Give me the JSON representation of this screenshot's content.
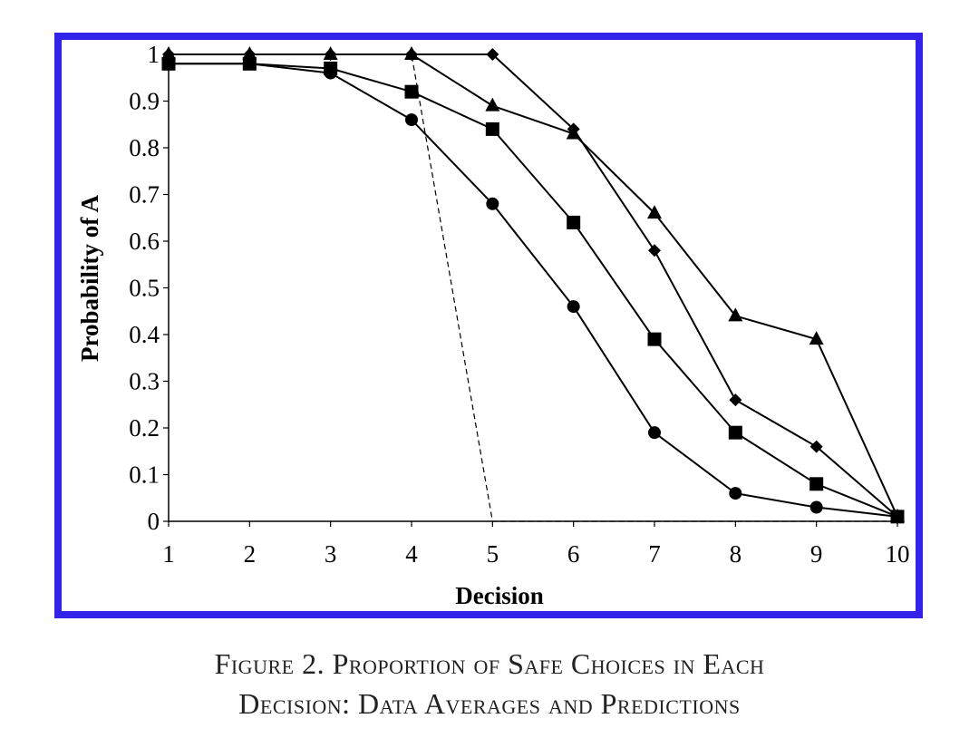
{
  "figure": {
    "caption_line1": "Figure 2. Proportion of Safe Choices in Each",
    "caption_line2": "Decision: Data Averages and Predictions",
    "border_color": "#3322e8"
  },
  "chart_data": {
    "type": "line",
    "title": "",
    "xlabel": "Decision",
    "ylabel": "Probability of A",
    "x": [
      1,
      2,
      3,
      4,
      5,
      6,
      7,
      8,
      9,
      10
    ],
    "xticks": [
      "1",
      "2",
      "3",
      "4",
      "5",
      "6",
      "7",
      "8",
      "9",
      "10"
    ],
    "yticks": [
      "0",
      "0.1",
      "0.2",
      "0.3",
      "0.4",
      "0.5",
      "0.6",
      "0.7",
      "0.8",
      "0.9",
      "1"
    ],
    "ylim": [
      0,
      1
    ],
    "xlim": [
      1,
      10
    ],
    "grid": false,
    "legend": "none",
    "series": [
      {
        "name": "circle",
        "marker": "circle",
        "style": "solid",
        "values": [
          0.98,
          0.98,
          0.96,
          0.86,
          0.68,
          0.46,
          0.19,
          0.06,
          0.03,
          0.01
        ]
      },
      {
        "name": "square",
        "marker": "square",
        "style": "solid",
        "values": [
          0.98,
          0.98,
          0.97,
          0.92,
          0.84,
          0.64,
          0.39,
          0.19,
          0.08,
          0.01
        ]
      },
      {
        "name": "triangle",
        "marker": "triangle",
        "style": "solid",
        "values": [
          1.0,
          1.0,
          1.0,
          1.0,
          0.89,
          0.83,
          0.66,
          0.44,
          0.39,
          0.01
        ]
      },
      {
        "name": "diamond",
        "marker": "diamond",
        "style": "solid",
        "values": [
          1.0,
          1.0,
          1.0,
          1.0,
          1.0,
          0.84,
          0.58,
          0.26,
          0.16,
          0.01
        ]
      },
      {
        "name": "risk-neutral prediction",
        "marker": "none",
        "style": "dashed",
        "values": [
          1.0,
          1.0,
          1.0,
          1.0,
          0.0,
          0.0,
          0.0,
          0.0,
          0.0,
          0.0
        ]
      }
    ]
  }
}
